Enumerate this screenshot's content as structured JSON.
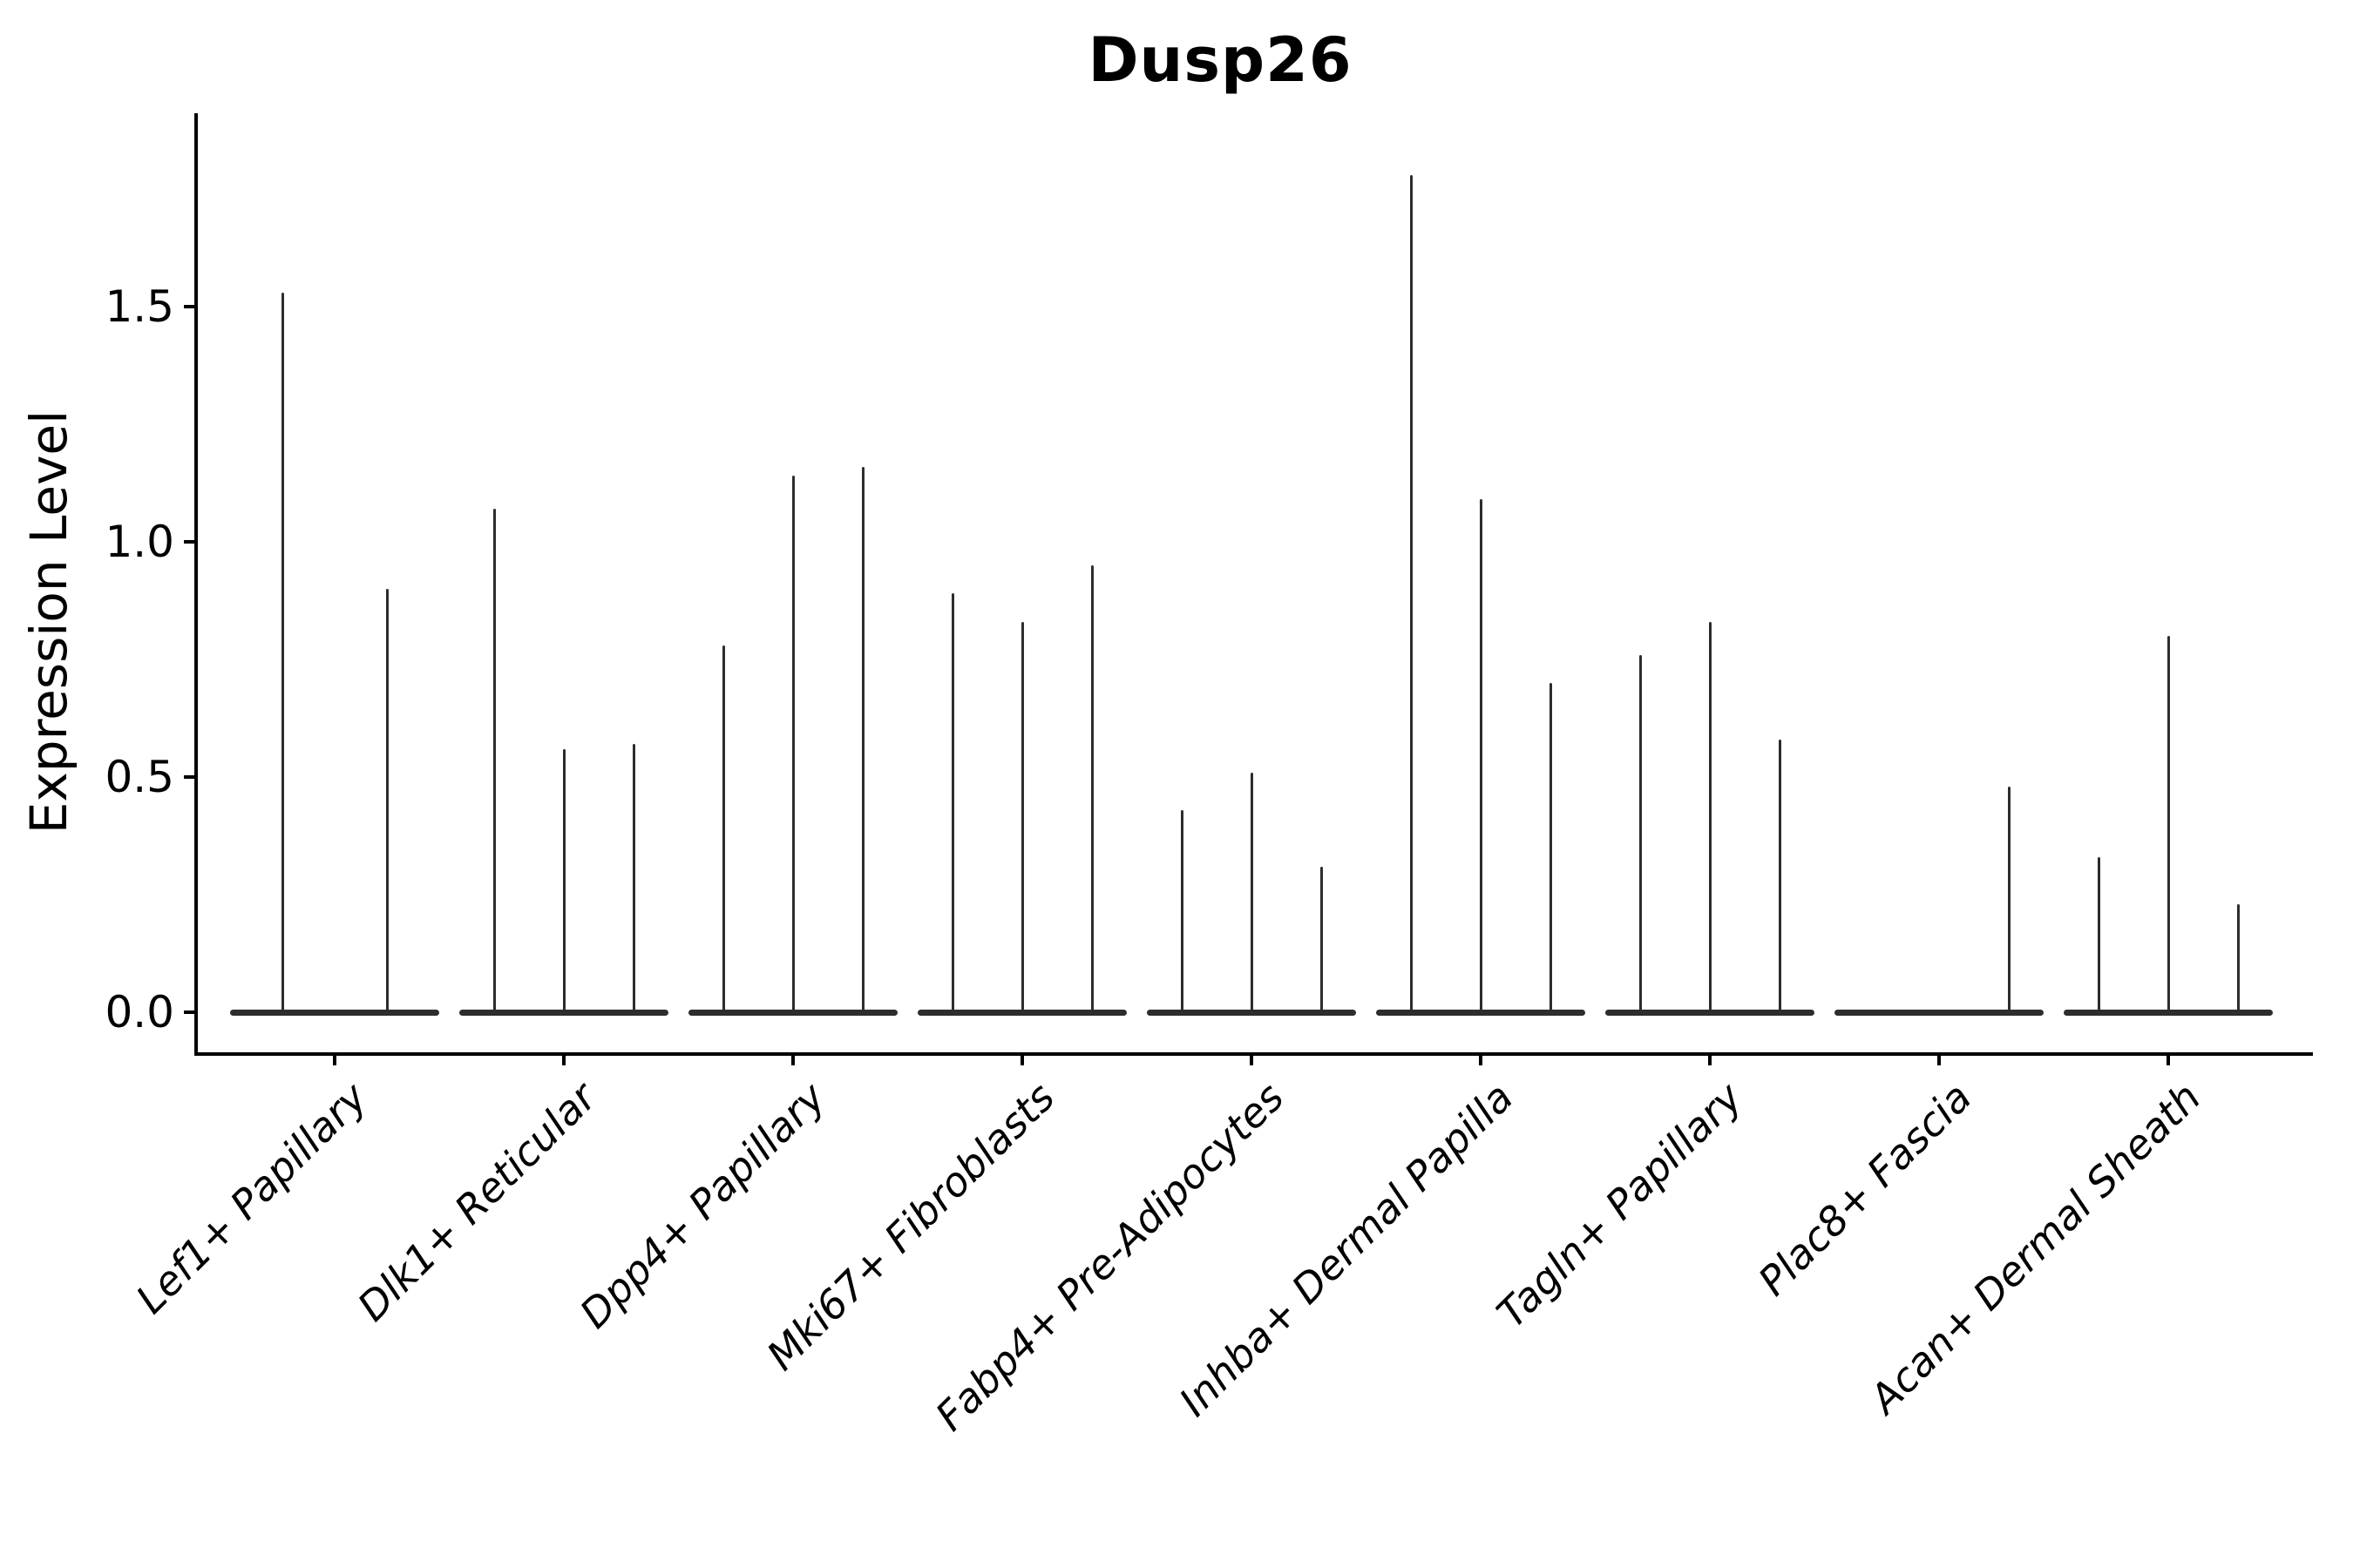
{
  "title": "Dusp26",
  "chart_data": {
    "type": "violin",
    "render_hint": "collapsed stick violins (single-cell expression, 2-3 samples per cluster)",
    "title": "Dusp26",
    "xlabel": "",
    "ylabel": "Expression Level",
    "ytick_labels": [
      "0.0",
      "0.5",
      "1.0",
      "1.5"
    ],
    "ytick_values": [
      0,
      0.5,
      1.0,
      1.5
    ],
    "ylim": [
      -0.085,
      1.885
    ],
    "grid": false,
    "legend_position": "none",
    "categories": [
      "Lef1+ Papillary",
      "Dlk1+ Reticular",
      "Dpp4+ Papillary",
      "Mki67+ Fibroblasts",
      "Fabp4+ Pre-Adipocytes",
      "Inhba+ Dermal Papilla",
      "Tagln+ Papillary",
      "Plac8+ Fascia",
      "Acan+ Dermal Sheath"
    ],
    "groups": [
      {
        "category": "Lef1+ Papillary",
        "violin_values": [
          1.53,
          0.9
        ]
      },
      {
        "category": "Dlk1+ Reticular",
        "violin_values": [
          1.07,
          0.56,
          0.57
        ]
      },
      {
        "category": "Dpp4+ Papillary",
        "violin_values": [
          0.78,
          1.14,
          1.16
        ]
      },
      {
        "category": "Mki67+ Fibroblasts",
        "violin_values": [
          0.89,
          0.83,
          0.95
        ]
      },
      {
        "category": "Fabp4+ Pre-Adipocytes",
        "violin_values": [
          0.43,
          0.51,
          0.31
        ]
      },
      {
        "category": "Inhba+ Dermal Papilla",
        "violin_values": [
          1.78,
          1.09,
          0.7
        ]
      },
      {
        "category": "Tagln+ Papillary",
        "violin_values": [
          0.76,
          0.83,
          0.58
        ]
      },
      {
        "category": "Plac8+ Fascia",
        "violin_values": [
          0.0,
          0.0,
          0.48
        ]
      },
      {
        "category": "Acan+ Dermal Sheath",
        "violin_values": [
          0.33,
          0.8,
          0.23
        ]
      }
    ],
    "style": {
      "ink": "#2d2d2d",
      "axis_color": "#000000",
      "background": "#ffffff"
    }
  }
}
